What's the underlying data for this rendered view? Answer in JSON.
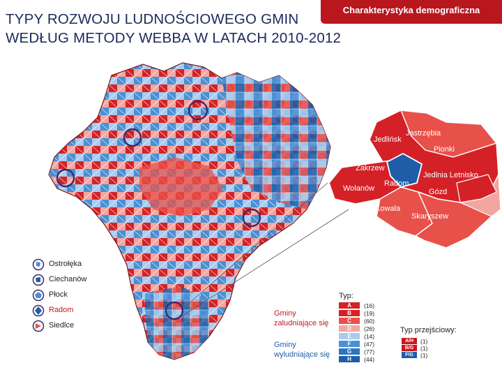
{
  "header": {
    "title_line1": "TYPY ROZWOJU LUDNOŚCIOWEGO GMIN",
    "title_line2": "WEDŁUG METODY WEBBA W LATACH 2010-2012",
    "section_tag": "Charakterystyka demograficzna"
  },
  "colors": {
    "red_dark": "#d42127",
    "red_mid": "#e8504a",
    "red_light": "#f3a6a0",
    "blue_dark": "#1f5da8",
    "blue_mid": "#4a8fd4",
    "blue_light": "#a8cbee",
    "brand": "#b8171d"
  },
  "inset_labels": [
    {
      "name": "Jastrzębia"
    },
    {
      "name": "Jedlińsk"
    },
    {
      "name": "Pionki"
    },
    {
      "name": "Zakrzew"
    },
    {
      "name": "Jedlnia Letnisko"
    },
    {
      "name": "Radom"
    },
    {
      "name": "Wolanów"
    },
    {
      "name": "Gózd"
    },
    {
      "name": "Kowala"
    },
    {
      "name": "Skaryszew"
    }
  ],
  "cities": [
    {
      "name": "Ostrołęka",
      "icon": "ostroleka-outline-icon"
    },
    {
      "name": "Ciechanów",
      "icon": "ciechanow-outline-icon"
    },
    {
      "name": "Płock",
      "icon": "plock-outline-icon"
    },
    {
      "name": "Radom",
      "icon": "radom-outline-icon"
    },
    {
      "name": "Siedlce",
      "icon": "siedlce-outline-icon"
    }
  ],
  "legend": {
    "typ_label": "Typ:",
    "group_growing": "Gminy zaludniające się",
    "group_declining": "Gminy wyludniające się",
    "types": [
      {
        "code": "A",
        "count": "(16)",
        "color": "#d42127"
      },
      {
        "code": "B",
        "count": "(19)",
        "color": "#d42127"
      },
      {
        "code": "C",
        "count": "(60)",
        "color": "#e8504a"
      },
      {
        "code": "D",
        "count": "(26)",
        "color": "#f3a6a0"
      },
      {
        "code": "E",
        "count": "(14)",
        "color": "#a8cbee"
      },
      {
        "code": "F",
        "count": "(47)",
        "color": "#4a8fd4"
      },
      {
        "code": "G",
        "count": "(77)",
        "color": "#2e74c0"
      },
      {
        "code": "H",
        "count": "(44)",
        "color": "#1f5da8"
      }
    ],
    "transition_label": "Typ przejściowy:",
    "transitions": [
      {
        "code": "A/H",
        "count": "(1)",
        "color": "#c8171d"
      },
      {
        "code": "B/G",
        "count": "(1)",
        "color": "#c8171d"
      },
      {
        "code": "F/G",
        "count": "(1)",
        "color": "#1f5da8"
      }
    ]
  }
}
